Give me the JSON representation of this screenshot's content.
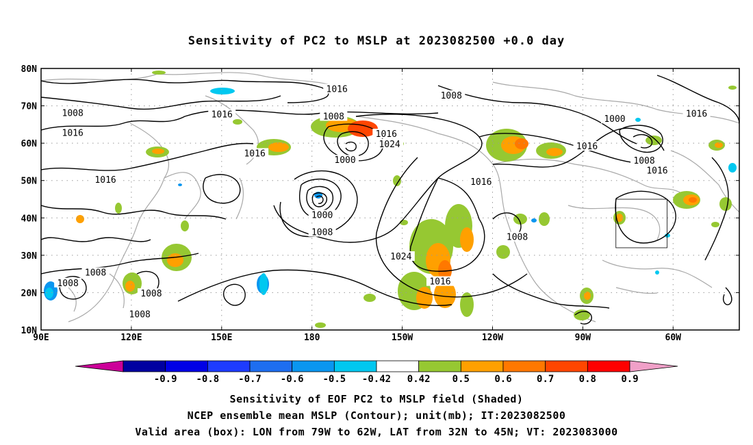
{
  "title": "Sensitivity of PC2 to MSLP at 2023082500 +0.0 day",
  "lat_labels": [
    "80N",
    "70N",
    "60N",
    "50N",
    "40N",
    "30N",
    "20N",
    "10N"
  ],
  "lon_labels": [
    "90E",
    "120E",
    "150E",
    "180",
    "150W",
    "120W",
    "90W",
    "60W"
  ],
  "contour_labels": [
    {
      "text": "1016",
      "lon": -171.7,
      "lat": 74.4
    },
    {
      "text": "1008",
      "lon": -133.7,
      "lat": 72.7
    },
    {
      "text": "1008",
      "lon": 100.5,
      "lat": 68.0
    },
    {
      "text": "1016",
      "lon": 150.1,
      "lat": 67.6
    },
    {
      "text": "1008",
      "lon": -172.8,
      "lat": 67.1
    },
    {
      "text": "1000",
      "lon": -79.4,
      "lat": 66.4
    },
    {
      "text": "1016",
      "lon": -52.2,
      "lat": 67.8
    },
    {
      "text": "1016",
      "lon": 100.5,
      "lat": 62.7
    },
    {
      "text": "1016",
      "lon": -155.3,
      "lat": 62.4
    },
    {
      "text": "1024",
      "lon": -154.2,
      "lat": 59.7
    },
    {
      "text": "1016",
      "lon": -88.6,
      "lat": 59.1
    },
    {
      "text": "1016",
      "lon": 161.0,
      "lat": 57.2
    },
    {
      "text": "1000",
      "lon": -169.0,
      "lat": 55.4
    },
    {
      "text": "1008",
      "lon": -69.6,
      "lat": 55.3
    },
    {
      "text": "1016",
      "lon": -65.3,
      "lat": 52.6
    },
    {
      "text": "1016",
      "lon": 111.4,
      "lat": 50.1
    },
    {
      "text": "1016",
      "lon": -123.8,
      "lat": 49.6
    },
    {
      "text": "1000",
      "lon": -176.6,
      "lat": 40.7
    },
    {
      "text": "1008",
      "lon": -176.6,
      "lat": 36.1
    },
    {
      "text": "1008",
      "lon": -111.8,
      "lat": 34.8
    },
    {
      "text": "1024",
      "lon": -150.4,
      "lat": 29.6
    },
    {
      "text": "1008",
      "lon": 108.1,
      "lat": 25.3
    },
    {
      "text": "1016",
      "lon": -137.4,
      "lat": 22.9
    },
    {
      "text": "1008",
      "lon": 98.9,
      "lat": 22.5
    },
    {
      "text": "1008",
      "lon": 126.6,
      "lat": 19.7
    },
    {
      "text": "1008",
      "lon": 122.8,
      "lat": 14.1
    }
  ],
  "colorbar": {
    "ticks": [
      "-0.9",
      "-0.8",
      "-0.7",
      "-0.6",
      "-0.5",
      "-0.42",
      "0.42",
      "0.5",
      "0.6",
      "0.7",
      "0.8",
      "0.9"
    ],
    "colors": [
      "#cc0099",
      "#0000a0",
      "#0000e6",
      "#1e3cff",
      "#1e6ef0",
      "#0a96f0",
      "#00c8f0",
      "#ffffff",
      "#96c832",
      "#ffa000",
      "#ff7800",
      "#ff4600",
      "#ff0000",
      "#f0a0c8"
    ]
  },
  "captions": [
    "Sensitivity of EOF PC2 to MSLP field (Shaded)",
    "NCEP ensemble mean MSLP (Contour); unit(mb); IT:2023082500",
    "Valid area (box): LON from 79W to 62W, LAT from 32N to 45N; VT: 2023083000"
  ],
  "valid_box": {
    "lon_west": -79,
    "lon_east": -62,
    "lat_south": 32,
    "lat_north": 45
  }
}
